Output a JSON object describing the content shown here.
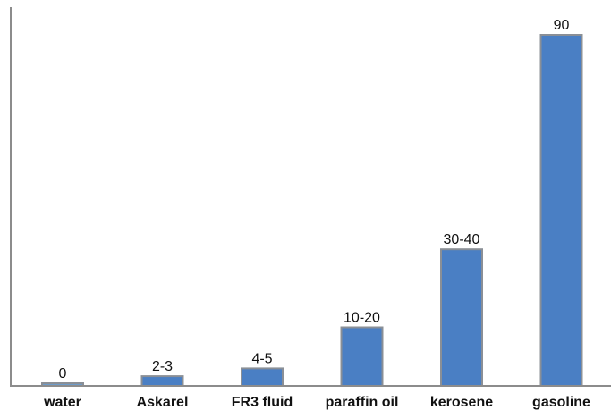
{
  "chart_data": {
    "type": "bar",
    "categories": [
      "water",
      "Askarel",
      "FR3 fluid",
      "paraffin oil",
      "kerosene",
      "gasoline"
    ],
    "values": [
      0,
      2.5,
      4.5,
      15,
      35,
      90
    ],
    "value_labels": [
      "0",
      "2-3",
      "4-5",
      "10-20",
      "30-40",
      "90"
    ],
    "title": "",
    "xlabel": "",
    "ylabel": "",
    "ylim": [
      0,
      90
    ],
    "grid": false,
    "legend": "none"
  },
  "colors": {
    "bar_fill": "#4a7fc4",
    "bar_fill_zero": "#6d9bc9",
    "bar_stroke": "#8a8f96",
    "axis": "#8c8c8c",
    "text": "#111111"
  }
}
